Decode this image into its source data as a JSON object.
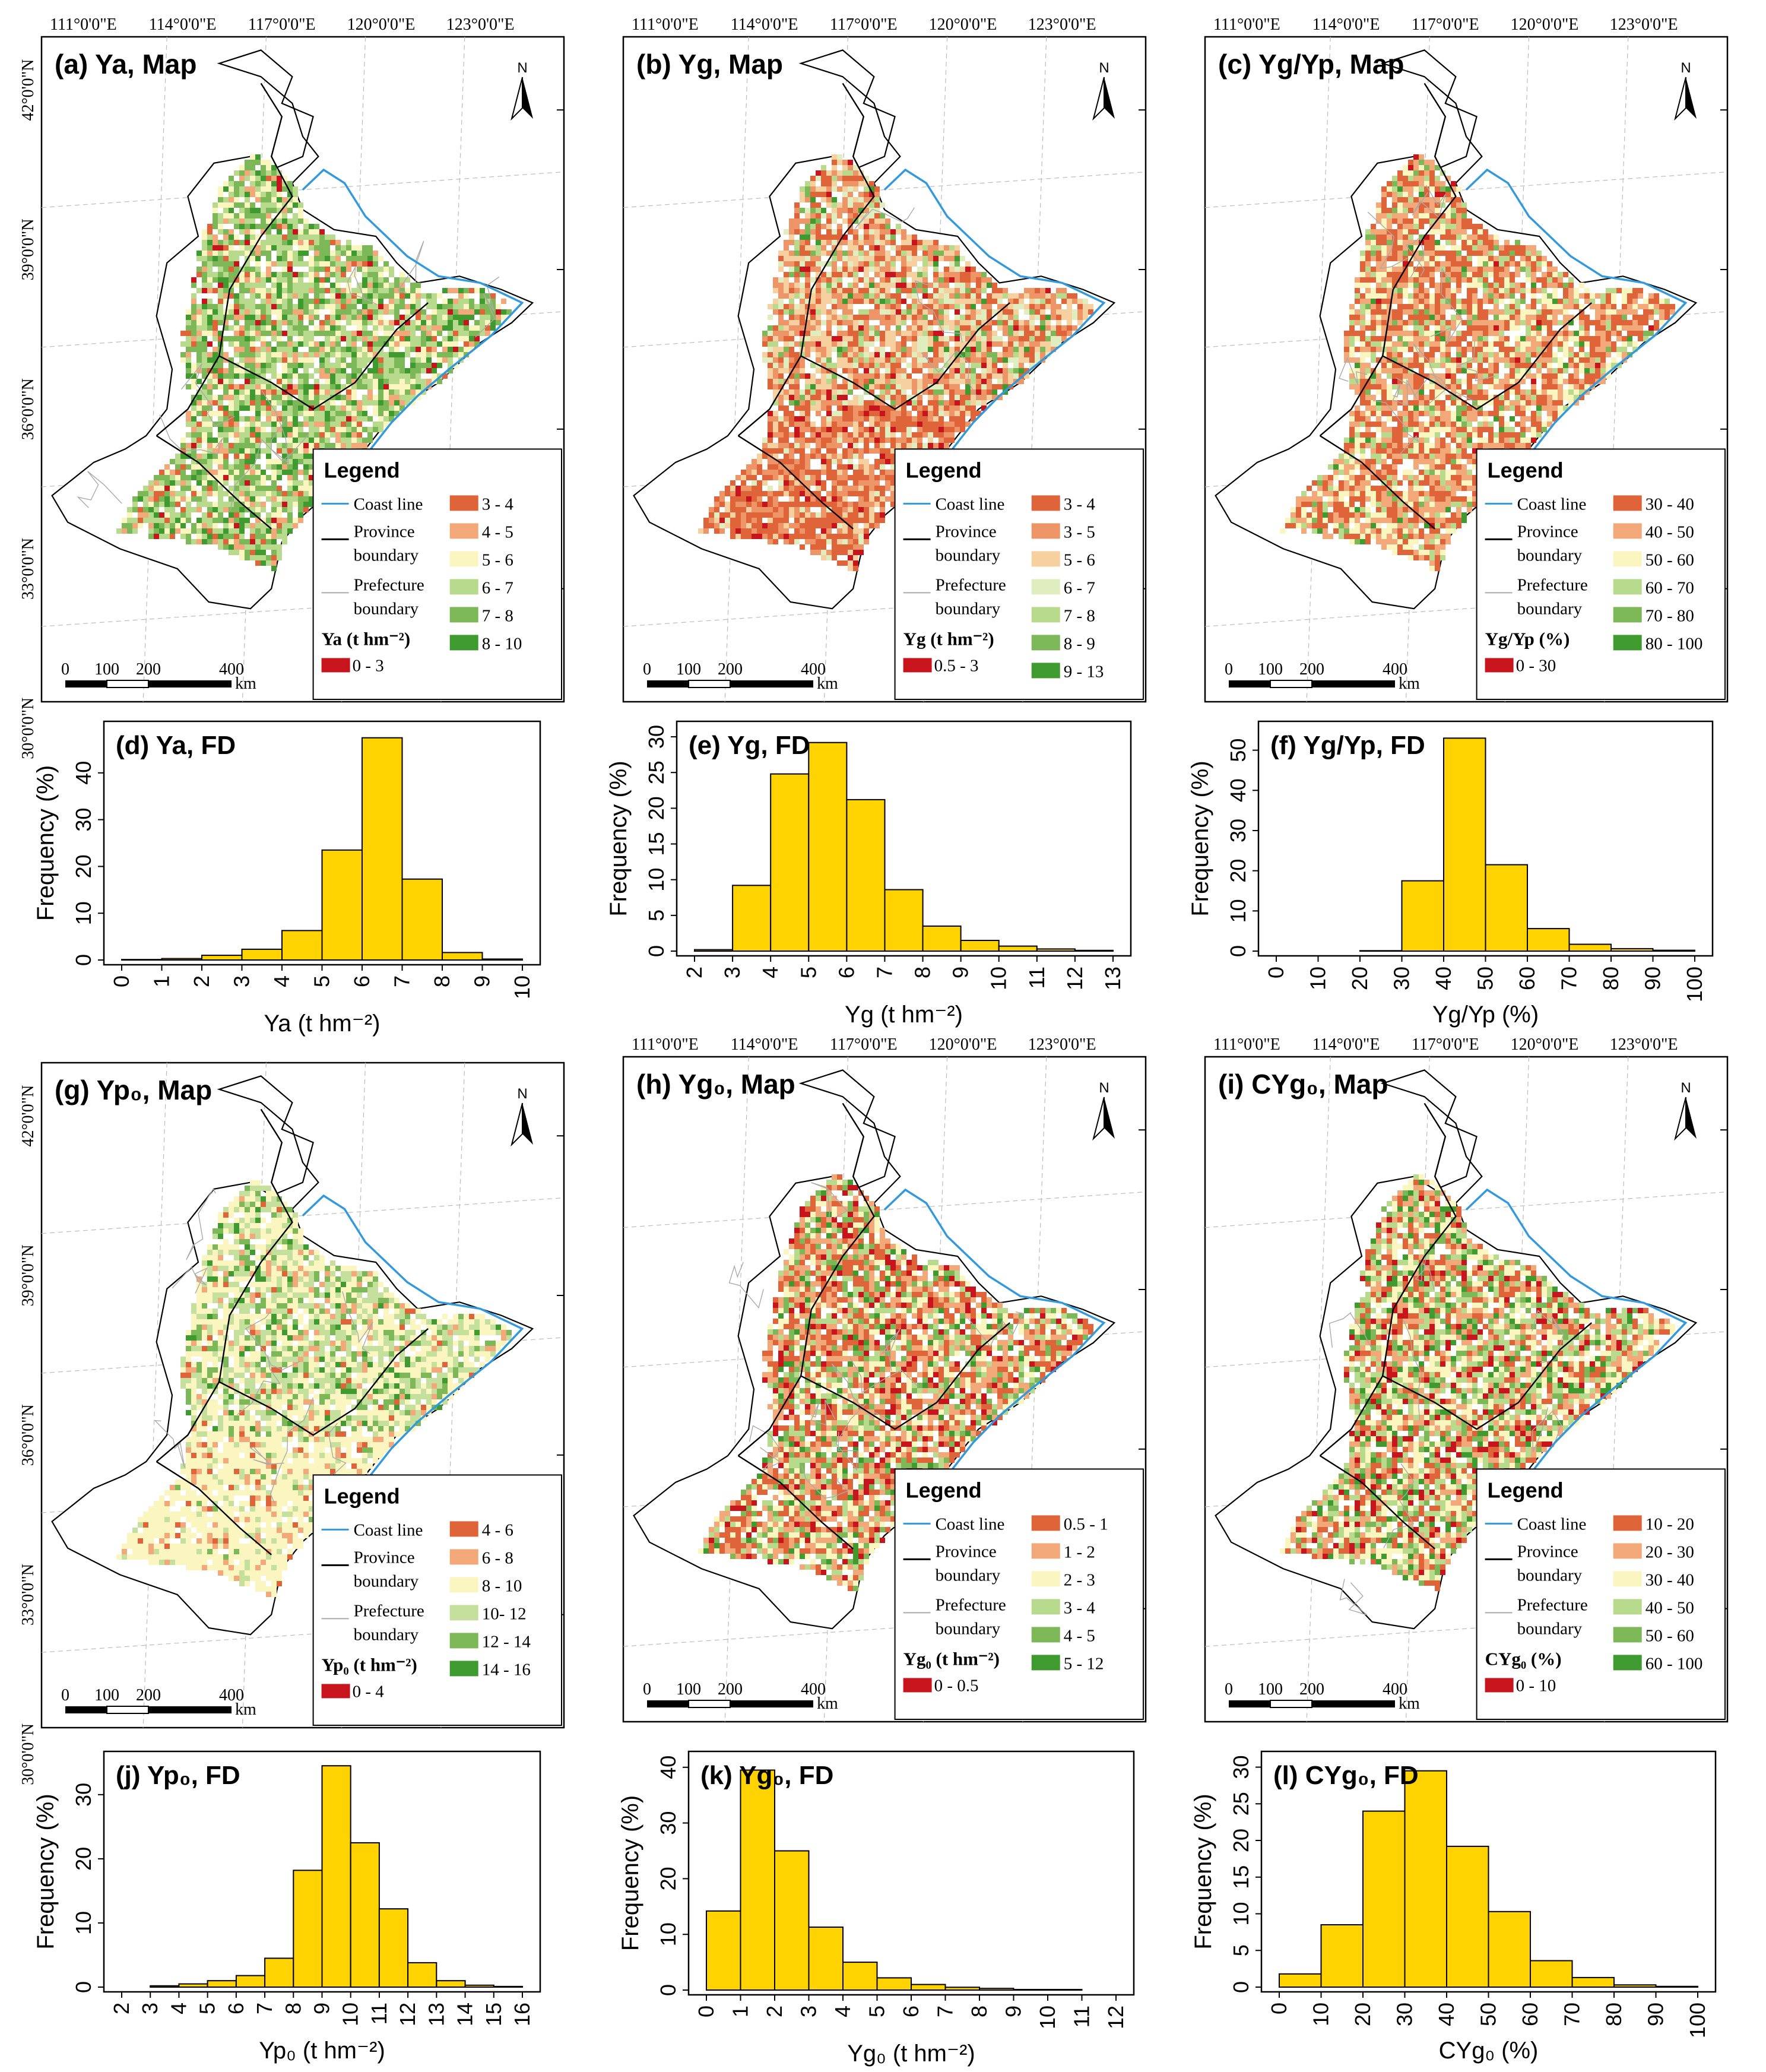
{
  "colors": {
    "bar": "#FFD300",
    "coast": "#3399dd",
    "province": "#000000",
    "prefecture": "#aaaaaa",
    "ramps": {
      "ya": [
        "#c8141c",
        "#e0643a",
        "#f2a878",
        "#fbf6bf",
        "#b8da8c",
        "#7cb857",
        "#3f9a30"
      ],
      "yg": [
        "#c8141c",
        "#e0643a",
        "#ed9566",
        "#f6d09e",
        "#e0eebf",
        "#b8da8c",
        "#7cb857",
        "#3f9a30"
      ],
      "ratio": [
        "#c8141c",
        "#e0643a",
        "#f2a878",
        "#fbf6bf",
        "#b8da8c",
        "#7cb857",
        "#3f9a30"
      ],
      "yp0": [
        "#c8141c",
        "#e0643a",
        "#f2a878",
        "#fbf6bf",
        "#c4e09c",
        "#7cb857",
        "#3f9a30"
      ],
      "yg0": [
        "#c8141c",
        "#e0643a",
        "#f2a878",
        "#fbf6bf",
        "#b8da8c",
        "#7cb857",
        "#3f9a30"
      ],
      "cyg0": [
        "#c8141c",
        "#e0643a",
        "#f2a878",
        "#fbf6bf",
        "#b8da8c",
        "#7cb857",
        "#3f9a30"
      ]
    }
  },
  "axis_labels": {
    "lon": [
      "111°0'0\"E",
      "114°0'0\"E",
      "117°0'0\"E",
      "120°0'0\"E",
      "123°0'0\"E"
    ],
    "lat": [
      "42°0'0\"N",
      "39°0'0\"N",
      "36°0'0\"N",
      "33°0'0\"N",
      "30°0'0\"N"
    ]
  },
  "maps": [
    {
      "title": "(a) Ya, Map",
      "north": "N",
      "legend_title": "Legend",
      "coast": "Coast line",
      "province": [
        "Province",
        "boundary"
      ],
      "prefecture": [
        "Prefecture",
        "boundary"
      ],
      "var": "Ya (t hm⁻²)",
      "first": "0 - 3",
      "classes": [
        "3 - 4",
        "4 - 5",
        "5 - 6",
        "6 - 7",
        "7 - 8",
        "8 - 10"
      ],
      "ramp": "ya",
      "scale": [
        "0",
        "100",
        "200",
        "400",
        "km"
      ]
    },
    {
      "title": "(b) Yg, Map",
      "north": "N",
      "legend_title": "Legend",
      "coast": "Coast line",
      "province": [
        "Province",
        "boundary"
      ],
      "prefecture": [
        "Prefecture",
        "boundary"
      ],
      "var": "Yg (t hm⁻²)",
      "first": "0.5 - 3",
      "classes": [
        "3 - 4",
        "3 - 5",
        "5 - 6",
        "6 - 7",
        "7 - 8",
        "8 - 9",
        "9 - 13"
      ],
      "ramp": "yg",
      "scale": [
        "0",
        "100",
        "200",
        "400",
        "km"
      ]
    },
    {
      "title": "(c) Yg/Yp, Map",
      "north": "N",
      "legend_title": "Legend",
      "coast": "Coast line",
      "province": [
        "Province",
        "boundary"
      ],
      "prefecture": [
        "Prefecture",
        "boundary"
      ],
      "var": "Yg/Yp (%)",
      "first": "0 - 30",
      "classes": [
        "30 - 40",
        "40 - 50",
        "50 - 60",
        "60 - 70",
        "70 - 80",
        "80 - 100"
      ],
      "ramp": "ratio",
      "scale": [
        "0",
        "100",
        "200",
        "400",
        "km"
      ]
    },
    {
      "title": "(g) Yp₀, Map",
      "north": "N",
      "legend_title": "Legend",
      "coast": "Coast line",
      "province": [
        "Province",
        "boundary"
      ],
      "prefecture": [
        "Prefecture",
        "boundary"
      ],
      "var": "Yp₀ (t hm⁻²)",
      "first": "0 - 4",
      "classes": [
        "4 - 6",
        "6 - 8",
        "8 - 10",
        "10- 12",
        "12 - 14",
        "14 - 16"
      ],
      "ramp": "yp0",
      "scale": [
        "0",
        "100",
        "200",
        "400",
        "km"
      ]
    },
    {
      "title": "(h) Yg₀, Map",
      "north": "N",
      "legend_title": "Legend",
      "coast": "Coast line",
      "province": [
        "Province",
        "boundary"
      ],
      "prefecture": [
        "Prefecture",
        "boundary"
      ],
      "var": "Yg₀ (t hm⁻²)",
      "first": "0 - 0.5",
      "classes": [
        "0.5 - 1",
        "1 - 2",
        "2 - 3",
        "3 - 4",
        "4 - 5",
        "5 - 12"
      ],
      "ramp": "yg0",
      "scale": [
        "0",
        "100",
        "200",
        "400",
        "km"
      ]
    },
    {
      "title": "(i) CYg₀, Map",
      "north": "N",
      "legend_title": "Legend",
      "coast": "Coast line",
      "province": [
        "Province",
        "boundary"
      ],
      "prefecture": [
        "Prefecture",
        "boundary"
      ],
      "var": "CYg₀ (%)",
      "first": "0 - 10",
      "classes": [
        "10 - 20",
        "20 - 30",
        "30 - 40",
        "40 - 50",
        "50 - 60",
        "60 - 100"
      ],
      "ramp": "cyg0",
      "scale": [
        "0",
        "100",
        "200",
        "400",
        "km"
      ]
    }
  ],
  "chart_data": [
    {
      "type": "bar",
      "title": "(d) Ya, FD",
      "xlabel": "Ya (t hm⁻²)",
      "ylabel": "Frequency (%)",
      "bin_edges": [
        0,
        1,
        2,
        3,
        4,
        5,
        6,
        7,
        8,
        9,
        10
      ],
      "values": [
        0.1,
        0.3,
        1.0,
        2.3,
        6.3,
        23.5,
        47.5,
        17.3,
        1.6,
        0.2
      ],
      "xticks": [
        0,
        1,
        2,
        3,
        4,
        5,
        6,
        7,
        8,
        9,
        10
      ],
      "yticks": [
        0,
        10,
        20,
        30,
        40
      ],
      "ylim": [
        0,
        50
      ]
    },
    {
      "type": "bar",
      "title": "(e) Yg, FD",
      "xlabel": "Yg (t hm⁻²)",
      "ylabel": "Frequency (%)",
      "bin_edges": [
        2,
        3,
        4,
        5,
        6,
        7,
        8,
        9,
        10,
        11,
        12,
        13
      ],
      "values": [
        0.2,
        9.2,
        24.8,
        29.2,
        21.2,
        8.6,
        3.5,
        1.5,
        0.7,
        0.3,
        0.1
      ],
      "xticks": [
        2,
        3,
        4,
        5,
        6,
        7,
        8,
        9,
        10,
        11,
        12,
        13
      ],
      "yticks": [
        0,
        5,
        10,
        15,
        20,
        25,
        30
      ],
      "ylim": [
        0,
        31.5
      ]
    },
    {
      "type": "bar",
      "title": "(f) Yg/Yp, FD",
      "xlabel": "Yg/Yp (%)",
      "ylabel": "Frequency (%)",
      "bin_edges": [
        0,
        10,
        20,
        30,
        40,
        50,
        60,
        70,
        80,
        90,
        100
      ],
      "values": [
        0,
        0,
        0.1,
        17.5,
        53,
        21.5,
        5.6,
        1.7,
        0.6,
        0.2
      ],
      "xticks": [
        0,
        10,
        20,
        30,
        40,
        50,
        60,
        70,
        80,
        90,
        100
      ],
      "yticks": [
        0,
        10,
        20,
        30,
        40,
        50
      ],
      "ylim": [
        0,
        56
      ]
    },
    {
      "type": "bar",
      "title": "(j) Yp₀, FD",
      "xlabel": "Yp₀ (t hm⁻²)",
      "ylabel": "Frequency (%)",
      "bin_edges": [
        2,
        3,
        4,
        5,
        6,
        7,
        8,
        9,
        10,
        11,
        12,
        13,
        14,
        15,
        16
      ],
      "values": [
        0,
        0.2,
        0.5,
        1.0,
        1.8,
        4.5,
        18.2,
        34.5,
        22.5,
        12.2,
        3.8,
        1.0,
        0.3,
        0.1
      ],
      "xticks": [
        2,
        3,
        4,
        5,
        6,
        7,
        8,
        9,
        10,
        11,
        12,
        13,
        14,
        15,
        16
      ],
      "yticks": [
        0,
        10,
        20,
        30
      ],
      "ylim": [
        0,
        36
      ]
    },
    {
      "type": "bar",
      "title": "(k) Yg₀, FD",
      "xlabel": "Yg₀ (t hm⁻²)",
      "ylabel": "Frequency (%)",
      "bin_edges": [
        0,
        1,
        2,
        3,
        4,
        5,
        6,
        7,
        8,
        9,
        10,
        11,
        12
      ],
      "values": [
        14.2,
        39.5,
        25.0,
        11.3,
        5.0,
        2.2,
        1.0,
        0.5,
        0.3,
        0.1,
        0.1,
        0
      ],
      "xticks": [
        0,
        1,
        2,
        3,
        4,
        5,
        6,
        7,
        8,
        9,
        10,
        11,
        12
      ],
      "yticks": [
        0,
        10,
        20,
        30,
        40
      ],
      "ylim": [
        0,
        42
      ]
    },
    {
      "type": "bar",
      "title": "(l) CYg₀, FD",
      "xlabel": "CYg₀ (%)",
      "ylabel": "Frequency (%)",
      "bin_edges": [
        0,
        10,
        20,
        30,
        40,
        50,
        60,
        70,
        80,
        90,
        100
      ],
      "values": [
        1.8,
        8.5,
        24.0,
        29.5,
        19.2,
        10.3,
        3.6,
        1.3,
        0.3,
        0.1
      ],
      "xticks": [
        0,
        10,
        20,
        30,
        40,
        50,
        60,
        70,
        80,
        90,
        100
      ],
      "yticks": [
        0,
        5,
        10,
        15,
        20,
        25,
        30
      ],
      "ylim": [
        0,
        31.5
      ]
    }
  ]
}
